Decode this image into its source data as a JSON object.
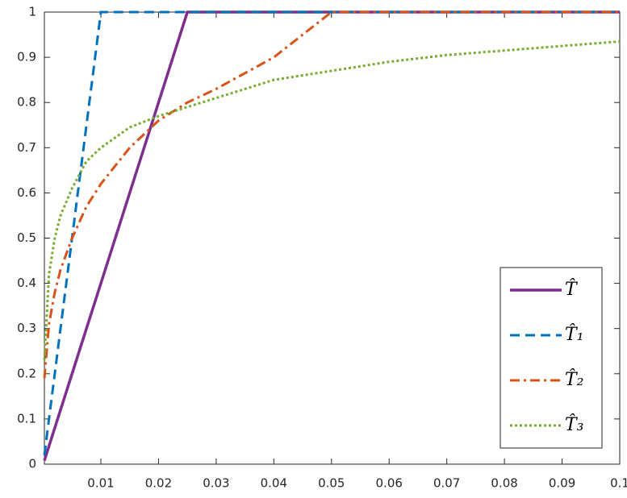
{
  "chart_data": {
    "type": "line",
    "x": [
      0.0002,
      0.001,
      0.002,
      0.003,
      0.005,
      0.0075,
      0.01,
      0.015,
      0.02,
      0.025,
      0.03,
      0.04,
      0.05,
      0.06,
      0.07,
      0.08,
      0.09,
      0.1
    ],
    "series": [
      {
        "name": "T̂",
        "color": "#7e2f8e",
        "linestyle": "solid",
        "values": [
          0.008,
          0.04,
          0.08,
          0.12,
          0.2,
          0.3,
          0.4,
          0.6,
          0.8,
          1,
          1,
          1,
          1,
          1,
          1,
          1,
          1,
          1
        ]
      },
      {
        "name": "T̂₁",
        "color": "#0072bd",
        "linestyle": "dashed",
        "values": [
          0.02,
          0.1,
          0.2,
          0.3,
          0.5,
          0.75,
          1,
          1,
          1,
          1,
          1,
          1,
          1,
          1,
          1,
          1,
          1,
          1
        ]
      },
      {
        "name": "T̂₂",
        "color": "#d95319",
        "linestyle": "dashdot",
        "values": [
          0.19,
          0.31,
          0.38,
          0.43,
          0.5,
          0.57,
          0.62,
          0.7,
          0.76,
          0.8,
          0.83,
          0.9,
          1,
          1,
          1,
          1,
          1,
          1
        ]
      },
      {
        "name": "T̂₃",
        "color": "#77ac30",
        "linestyle": "dotted",
        "values": [
          0.23,
          0.42,
          0.5,
          0.55,
          0.61,
          0.67,
          0.7,
          0.745,
          0.77,
          0.79,
          0.81,
          0.85,
          0.87,
          0.89,
          0.905,
          0.915,
          0.925,
          0.935
        ]
      }
    ],
    "xlim": [
      0.0002,
      0.1
    ],
    "ylim": [
      0,
      1
    ],
    "xticks": [
      0.01,
      0.02,
      0.03,
      0.04,
      0.05,
      0.06,
      0.07,
      0.08,
      0.09,
      0.1
    ],
    "yticks": [
      0,
      0.1,
      0.2,
      0.3,
      0.4,
      0.5,
      0.6,
      0.7,
      0.8,
      0.9,
      1
    ],
    "grid": false,
    "legend": "southeast"
  }
}
